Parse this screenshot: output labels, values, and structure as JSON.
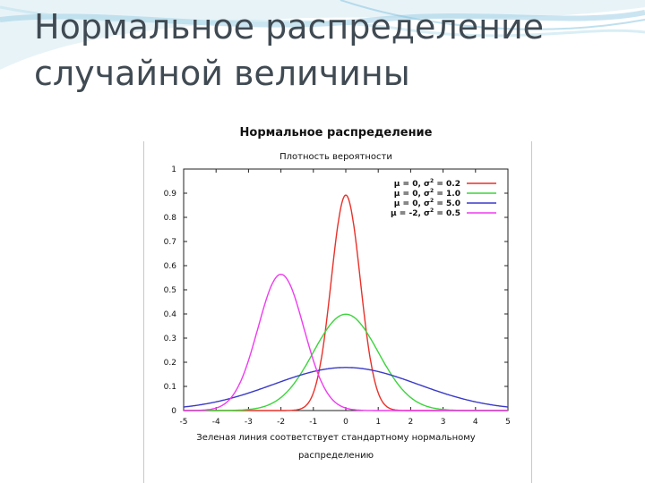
{
  "slide": {
    "title_line1": "Нормальное распределение",
    "title_line2": "случайной величины"
  },
  "chart_data": {
    "type": "line",
    "title": "Нормальное распределение",
    "subtitle": "Плотность вероятности",
    "caption_line1": "Зеленая линия соответствует стандартному нормальному",
    "caption_line2": "распределению",
    "xlim": [
      -5,
      5
    ],
    "ylim": [
      0,
      1
    ],
    "x_ticks": [
      -5,
      -4,
      -3,
      -2,
      -1,
      0,
      1,
      2,
      3,
      4,
      5
    ],
    "y_ticks": [
      0,
      0.1,
      0.2,
      0.3,
      0.4,
      0.5,
      0.6,
      0.7,
      0.8,
      0.9,
      1
    ],
    "grid": false,
    "legend_position": "top-right",
    "series": [
      {
        "name": "μ = 0, σ² = 0.2",
        "label_mu": "μ = 0, σ",
        "label_var": " = 0.2",
        "mu": 0,
        "variance": 0.2,
        "color": "#e8312a"
      },
      {
        "name": "μ = 0, σ² = 1.0",
        "label_mu": "μ = 0, σ",
        "label_var": " = 1.0",
        "mu": 0,
        "variance": 1.0,
        "color": "#3cd43c"
      },
      {
        "name": "μ = 0, σ² = 5.0",
        "label_mu": "μ = 0, σ",
        "label_var": " = 5.0",
        "mu": 0,
        "variance": 5.0,
        "color": "#3a3ac8"
      },
      {
        "name": "μ = -2, σ² = 0.5",
        "label_mu": "μ = -2, σ",
        "label_var": " = 0.5",
        "mu": -2,
        "variance": 0.5,
        "color": "#ee3cee"
      }
    ]
  }
}
